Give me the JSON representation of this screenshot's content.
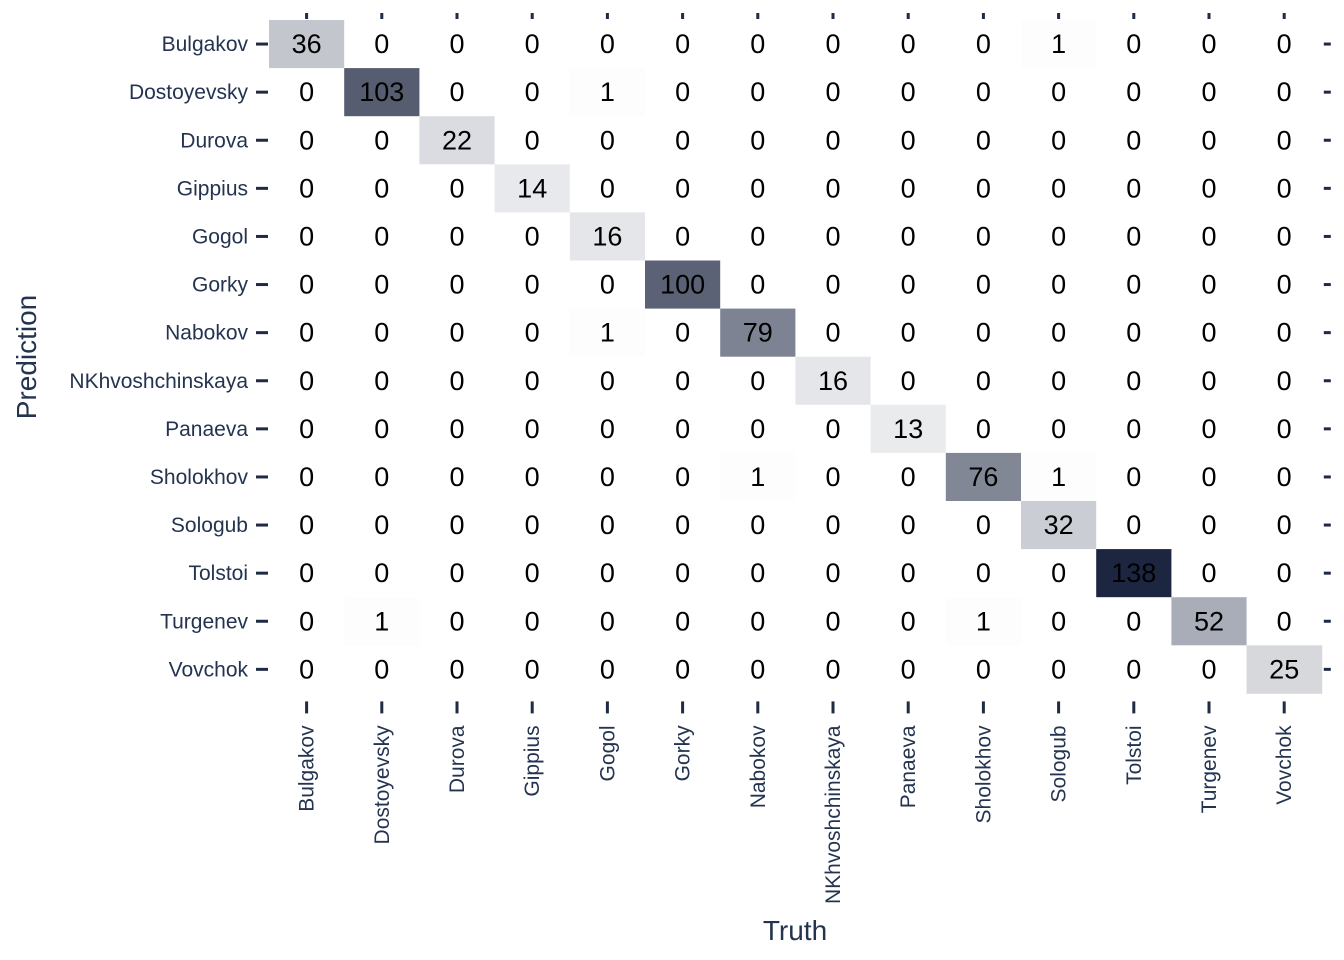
{
  "chart_data": {
    "type": "heatmap",
    "title": "",
    "xlabel": "Truth",
    "ylabel": "Prediction",
    "grid": false,
    "legend": "none",
    "color_low": "#ffffff",
    "color_high": "#1c2640",
    "text_color_dark": "#000000",
    "text_color_light": "#000000",
    "x_categories": [
      "Bulgakov",
      "Dostoyevsky",
      "Durova",
      "Gippius",
      "Gogol",
      "Gorky",
      "Nabokov",
      "NKhvoshchinskaya",
      "Panaeva",
      "Sholokhov",
      "Sologub",
      "Tolstoi",
      "Turgenev",
      "Vovchok"
    ],
    "y_categories": [
      "Bulgakov",
      "Dostoyevsky",
      "Durova",
      "Gippius",
      "Gogol",
      "Gorky",
      "Nabokov",
      "NKhvoshchinskaya",
      "Panaeva",
      "Sholokhov",
      "Sologub",
      "Tolstoi",
      "Turgenev",
      "Vovchok"
    ],
    "values": [
      [
        36,
        0,
        0,
        0,
        0,
        0,
        0,
        0,
        0,
        0,
        1,
        0,
        0,
        0
      ],
      [
        0,
        103,
        0,
        0,
        1,
        0,
        0,
        0,
        0,
        0,
        0,
        0,
        0,
        0
      ],
      [
        0,
        0,
        22,
        0,
        0,
        0,
        0,
        0,
        0,
        0,
        0,
        0,
        0,
        0
      ],
      [
        0,
        0,
        0,
        14,
        0,
        0,
        0,
        0,
        0,
        0,
        0,
        0,
        0,
        0
      ],
      [
        0,
        0,
        0,
        0,
        16,
        0,
        0,
        0,
        0,
        0,
        0,
        0,
        0,
        0
      ],
      [
        0,
        0,
        0,
        0,
        0,
        100,
        0,
        0,
        0,
        0,
        0,
        0,
        0,
        0
      ],
      [
        0,
        0,
        0,
        0,
        1,
        0,
        79,
        0,
        0,
        0,
        0,
        0,
        0,
        0
      ],
      [
        0,
        0,
        0,
        0,
        0,
        0,
        0,
        16,
        0,
        0,
        0,
        0,
        0,
        0
      ],
      [
        0,
        0,
        0,
        0,
        0,
        0,
        0,
        0,
        13,
        0,
        0,
        0,
        0,
        0
      ],
      [
        0,
        0,
        0,
        0,
        0,
        0,
        1,
        0,
        0,
        76,
        1,
        0,
        0,
        0
      ],
      [
        0,
        0,
        0,
        0,
        0,
        0,
        0,
        0,
        0,
        0,
        32,
        0,
        0,
        0
      ],
      [
        0,
        0,
        0,
        0,
        0,
        0,
        0,
        0,
        0,
        0,
        0,
        138,
        0,
        0
      ],
      [
        0,
        1,
        0,
        0,
        0,
        0,
        0,
        0,
        0,
        1,
        0,
        0,
        52,
        0
      ],
      [
        0,
        0,
        0,
        0,
        0,
        0,
        0,
        0,
        0,
        0,
        0,
        0,
        0,
        25
      ]
    ]
  }
}
